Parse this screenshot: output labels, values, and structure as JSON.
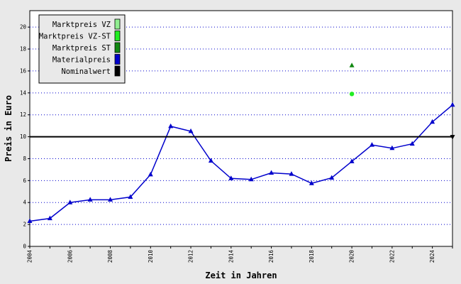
{
  "chart_data": {
    "type": "line",
    "title": "",
    "xlabel": "Zeit in Jahren",
    "ylabel": "Preis in Euro",
    "xlim": [
      2004,
      2025
    ],
    "ylim": [
      0,
      21.5
    ],
    "x_ticks": [
      "2004",
      "2006",
      "2008",
      "2010",
      "2012",
      "2014",
      "2016",
      "2018",
      "2020",
      "2022",
      "2024"
    ],
    "y_ticks": [
      "0",
      "2",
      "4",
      "6",
      "8",
      "10",
      "12",
      "14",
      "16",
      "18",
      "20"
    ],
    "grid": "horizontal dotted",
    "legend_position": "top-left",
    "legend": [
      {
        "label": "Marktpreis VZ",
        "color": "#90ee90"
      },
      {
        "label": "Marktpreis VZ-ST",
        "color": "#22ee22"
      },
      {
        "label": "Marktpreis ST",
        "color": "#118811"
      },
      {
        "label": "Materialpreis",
        "color": "#0000cc"
      },
      {
        "label": "Nominalwert",
        "color": "#000000"
      }
    ],
    "series": [
      {
        "name": "Materialpreis",
        "color": "#0000cc",
        "marker": "triangle",
        "x": [
          2004,
          2005,
          2006,
          2007,
          2008,
          2009,
          2010,
          2011,
          2012,
          2013,
          2014,
          2015,
          2016,
          2017,
          2018,
          2019,
          2020,
          2021,
          2022,
          2023,
          2024,
          2025
        ],
        "y": [
          2.3,
          2.55,
          4.0,
          4.25,
          4.25,
          4.5,
          6.55,
          10.95,
          10.5,
          7.8,
          6.2,
          6.1,
          6.7,
          6.6,
          5.75,
          6.25,
          7.75,
          9.25,
          8.95,
          9.35,
          11.35,
          12.9
        ]
      },
      {
        "name": "Nominalwert",
        "color": "#000000",
        "marker": "triangle-down",
        "x": [
          2004,
          2025
        ],
        "y": [
          10,
          10
        ]
      },
      {
        "name": "Marktpreis VZ-ST",
        "color": "#22ee22",
        "marker": "circle",
        "x": [
          2020
        ],
        "y": [
          13.9
        ]
      },
      {
        "name": "Marktpreis ST",
        "color": "#118811",
        "marker": "triangle",
        "x": [
          2020
        ],
        "y": [
          16.5
        ]
      }
    ]
  }
}
